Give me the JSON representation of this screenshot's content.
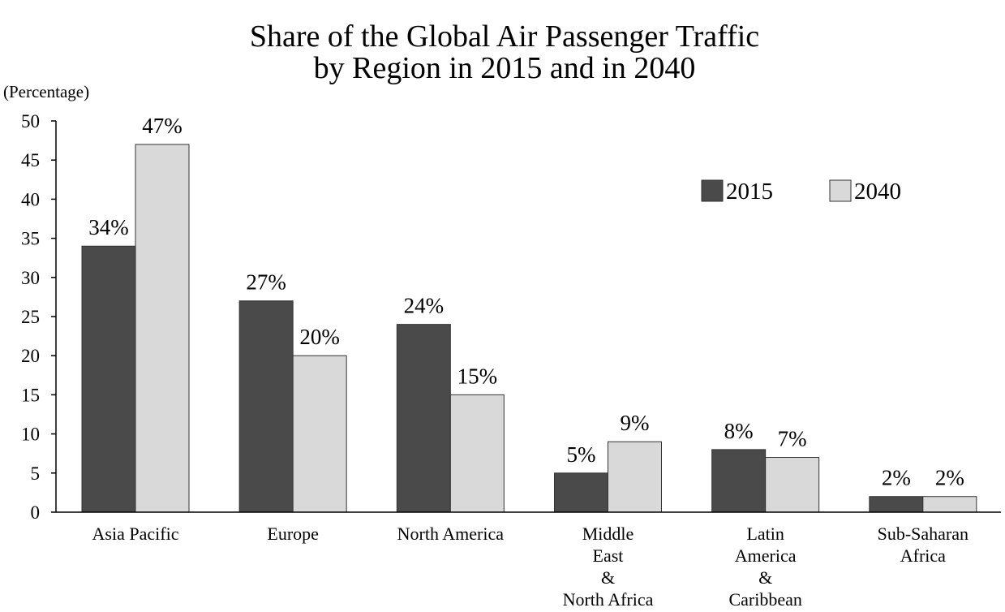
{
  "chart_data": {
    "type": "bar",
    "title_lines": [
      "Share of the Global Air Passenger Traffic",
      "by Region in 2015 and in 2040"
    ],
    "ylabel": "(Percentage)",
    "xlabel": "",
    "ylim": [
      0,
      50
    ],
    "yticks": [
      0,
      5,
      10,
      15,
      20,
      25,
      30,
      35,
      40,
      45,
      50
    ],
    "grid": false,
    "legend_position": "top-right",
    "categories": [
      [
        "Asia Pacific"
      ],
      [
        "Europe"
      ],
      [
        "North America"
      ],
      [
        "Middle",
        "East",
        "&",
        "North Africa"
      ],
      [
        "Latin",
        "America",
        "&",
        "Caribbean"
      ],
      [
        "Sub-Saharan",
        "Africa"
      ]
    ],
    "series": [
      {
        "name": "2015",
        "color": "#4a4a4a",
        "values": [
          34,
          27,
          24,
          5,
          8,
          2
        ],
        "labels": [
          "34%",
          "27%",
          "24%",
          "5%",
          "8%",
          "2%"
        ]
      },
      {
        "name": "2040",
        "color": "#d9d9d9",
        "values": [
          47,
          20,
          15,
          9,
          7,
          2
        ],
        "labels": [
          "47%",
          "20%",
          "15%",
          "9%",
          "7%",
          "2%"
        ]
      }
    ]
  }
}
